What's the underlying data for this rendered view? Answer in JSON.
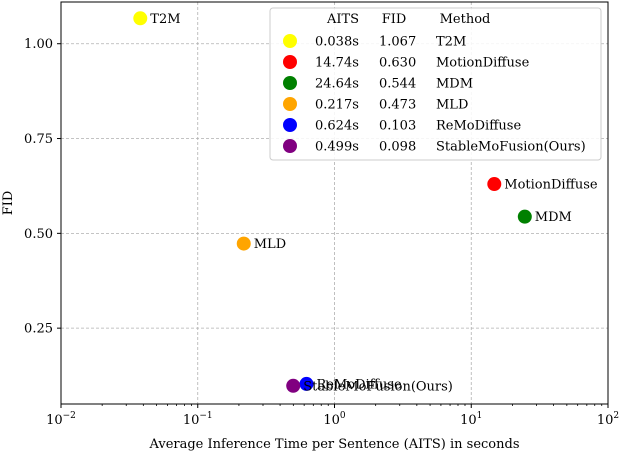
{
  "chart_data": {
    "type": "scatter",
    "xlabel": "Average Inference Time per Sentence (AITS) in seconds",
    "ylabel": "FID",
    "xscale": "log",
    "xlim": [
      0.01,
      100
    ],
    "ylim": [
      0.05,
      1.11
    ],
    "xticks": [
      {
        "value": 0.01,
        "base": "10",
        "exp": "−2"
      },
      {
        "value": 0.1,
        "base": "10",
        "exp": "−1"
      },
      {
        "value": 1,
        "base": "10",
        "exp": "0"
      },
      {
        "value": 10,
        "base": "10",
        "exp": "1"
      },
      {
        "value": 100,
        "base": "10",
        "exp": "2"
      }
    ],
    "yticks": [
      {
        "value": 0.25,
        "label": "0.25"
      },
      {
        "value": 0.5,
        "label": "0.50"
      },
      {
        "value": 0.75,
        "label": "0.75"
      },
      {
        "value": 1.0,
        "label": "1.00"
      }
    ],
    "grid": true,
    "legend_position": "top-right",
    "legend_headers": [
      "AITS",
      "FID",
      "Method"
    ],
    "points": [
      {
        "name": "T2M",
        "x": 0.038,
        "y": 1.067,
        "aits": "0.038s",
        "fid": "1.067",
        "color": "#ffff00"
      },
      {
        "name": "MotionDiffuse",
        "x": 14.74,
        "y": 0.63,
        "aits": "14.74s",
        "fid": "0.630",
        "color": "#ff0000"
      },
      {
        "name": "MDM",
        "x": 24.64,
        "y": 0.544,
        "aits": "24.64s",
        "fid": "0.544",
        "color": "#008000"
      },
      {
        "name": "MLD",
        "x": 0.217,
        "y": 0.473,
        "aits": "0.217s",
        "fid": "0.473",
        "color": "#ffa500"
      },
      {
        "name": "ReMoDiffuse",
        "x": 0.624,
        "y": 0.103,
        "aits": "0.624s",
        "fid": "0.103",
        "color": "#0000ff"
      },
      {
        "name": "StableMoFusion(Ours)",
        "x": 0.499,
        "y": 0.098,
        "aits": "0.499s",
        "fid": "0.098",
        "color": "#800080"
      }
    ]
  }
}
